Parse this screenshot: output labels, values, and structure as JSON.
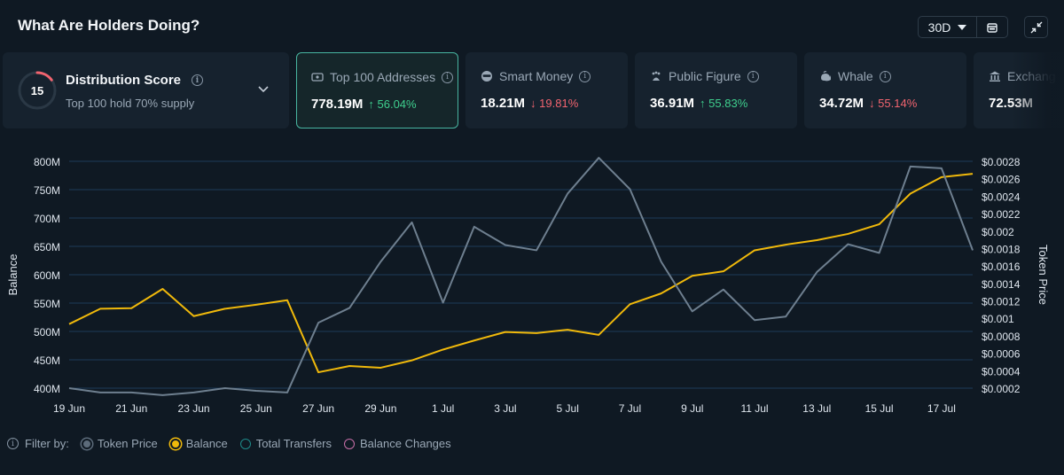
{
  "header": {
    "title": "What Are Holders Doing?"
  },
  "controls": {
    "range": "30D",
    "calendar_icon": "calendar-icon",
    "collapse_icon": "collapse-icon"
  },
  "distribution": {
    "score": "15",
    "title": "Distribution Score",
    "subtitle": "Top 100 hold 70% supply",
    "gauge_fraction": 0.15,
    "gauge_color": "#f2646f"
  },
  "cards": [
    {
      "label": "Top 100 Addresses",
      "value": "778.19M",
      "arrow": "↑",
      "change": "56.04%",
      "dir": "up"
    },
    {
      "label": "Smart Money",
      "value": "18.21M",
      "arrow": "↓",
      "change": "19.81%",
      "dir": "down"
    },
    {
      "label": "Public Figure",
      "value": "36.91M",
      "arrow": "↑",
      "change": "55.83%",
      "dir": "up"
    },
    {
      "label": "Whale",
      "value": "34.72M",
      "arrow": "↓",
      "change": "55.14%",
      "dir": "down"
    },
    {
      "label": "Exchang",
      "value": "72.53M",
      "arrow": "",
      "change": "",
      "dir": ""
    }
  ],
  "legend": {
    "filter_label": "Filter by:",
    "items": [
      {
        "label": "Token Price",
        "color": "#5c6b7a"
      },
      {
        "label": "Balance",
        "color": "#f0b90b"
      },
      {
        "label": "Total Transfers",
        "color": "#1e8a8a"
      },
      {
        "label": "Balance Changes",
        "color": "#c86fa8"
      }
    ]
  },
  "chart_data": {
    "type": "line",
    "xlabel": "",
    "ylabel": "Balance",
    "ylabel_right": "Token Price",
    "x_ticks": [
      "19 Jun",
      "21 Jun",
      "23 Jun",
      "25 Jun",
      "27 Jun",
      "29 Jun",
      "1 Jul",
      "3 Jul",
      "5 Jul",
      "7 Jul",
      "9 Jul",
      "11 Jul",
      "13 Jul",
      "15 Jul",
      "17 Jul"
    ],
    "y_ticks_left": [
      "400M",
      "450M",
      "500M",
      "550M",
      "600M",
      "650M",
      "700M",
      "750M",
      "800M"
    ],
    "y_ticks_right": [
      "$0.0002",
      "$0.0004",
      "$0.0006",
      "$0.0008",
      "$0.001",
      "$0.0012",
      "$0.0014",
      "$0.0016",
      "$0.0018",
      "$0.002",
      "$0.0022",
      "$0.0024",
      "$0.0026",
      "$0.0028"
    ],
    "ylim_left": [
      400,
      800
    ],
    "ylim_right": [
      0.0002,
      0.0028
    ],
    "grid": true,
    "legend_position": "bottom-left",
    "x": [
      "19 Jun",
      "20 Jun",
      "21 Jun",
      "22 Jun",
      "23 Jun",
      "24 Jun",
      "25 Jun",
      "26 Jun",
      "27 Jun",
      "28 Jun",
      "29 Jun",
      "30 Jun",
      "1 Jul",
      "2 Jul",
      "3 Jul",
      "4 Jul",
      "5 Jul",
      "6 Jul",
      "7 Jul",
      "8 Jul",
      "9 Jul",
      "10 Jul",
      "11 Jul",
      "12 Jul",
      "13 Jul",
      "14 Jul",
      "15 Jul",
      "16 Jul",
      "17 Jul",
      "18 Jul"
    ],
    "series": [
      {
        "name": "Balance",
        "axis": "left",
        "color": "#f0b90b",
        "values": [
          513,
          540,
          541,
          575,
          527,
          540,
          547,
          555,
          428,
          439,
          436,
          449,
          468,
          484,
          499,
          497,
          503,
          494,
          548,
          567,
          598,
          606,
          643,
          653,
          661,
          672,
          689,
          743,
          772,
          778
        ]
      },
      {
        "name": "Token Price",
        "axis": "right",
        "color": "#6e7f8f",
        "values": [
          0.0002,
          0.00015,
          0.00015,
          0.00012,
          0.00015,
          0.0002,
          0.00017,
          0.00015,
          0.00095,
          0.00112,
          0.00165,
          0.0021,
          0.00118,
          0.00205,
          0.00184,
          0.00178,
          0.00243,
          0.00284,
          0.00248,
          0.00165,
          0.00108,
          0.00133,
          0.00098,
          0.00102,
          0.00153,
          0.00185,
          0.00175,
          0.00274,
          0.00272,
          0.00178
        ]
      }
    ]
  }
}
